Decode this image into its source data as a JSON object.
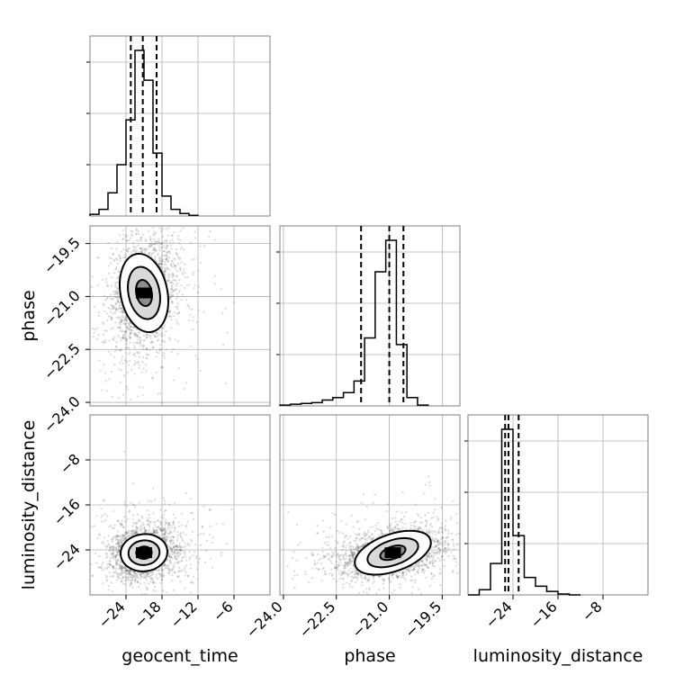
{
  "chart_data": {
    "type": "corner",
    "parameters": [
      "geocent_time",
      "phase",
      "luminosity_distance"
    ],
    "axes": {
      "geocent_time": {
        "label": "geocent_time",
        "range": [
          -30,
          0
        ],
        "ticks": [
          -24,
          -18,
          -12,
          -6
        ],
        "tick_labels": [
          "−24",
          "−18",
          "−12",
          "−6"
        ]
      },
      "phase": {
        "label": "phase",
        "range": [
          -24.1,
          -19.0
        ],
        "ticks": [
          -24.0,
          -22.5,
          -21.0,
          -19.5
        ],
        "tick_labels": [
          "−24.0",
          "−22.5",
          "−21.0",
          "−19.5"
        ]
      },
      "luminosity_distance": {
        "label": "luminosity_distance",
        "range": [
          -32,
          0
        ],
        "ticks": [
          -24,
          -16,
          -8
        ],
        "tick_labels": [
          "−24",
          "−16",
          "−8"
        ]
      }
    },
    "marginals": [
      {
        "parameter": "geocent_time",
        "bin_edges": [
          -30,
          -28.5,
          -27,
          -25.5,
          -24,
          -22.5,
          -21,
          -19.5,
          -18,
          -16.5,
          -15,
          -13.5,
          -12
        ],
        "counts": [
          0.01,
          0.04,
          0.14,
          0.31,
          0.58,
          1.0,
          0.82,
          0.38,
          0.12,
          0.04,
          0.015,
          0.004
        ],
        "quantiles": [
          -23.2,
          -21.2,
          -18.9
        ]
      },
      {
        "parameter": "phase",
        "bin_edges": [
          -24.1,
          -23.8,
          -23.5,
          -23.2,
          -22.9,
          -22.6,
          -22.3,
          -22.0,
          -21.7,
          -21.4,
          -21.1,
          -20.8,
          -20.5,
          -20.2,
          -19.9
        ],
        "counts": [
          0.005,
          0.01,
          0.015,
          0.02,
          0.035,
          0.05,
          0.08,
          0.15,
          0.41,
          0.81,
          1.0,
          0.37,
          0.05,
          0.005
        ],
        "quantiles": [
          -21.8,
          -21.0,
          -20.6
        ]
      },
      {
        "parameter": "luminosity_distance",
        "bin_edges": [
          -32,
          -30,
          -28,
          -26,
          -24,
          -22,
          -20,
          -18,
          -16,
          -14,
          -12
        ],
        "counts": [
          0.0,
          0.03,
          0.18,
          0.95,
          0.34,
          0.1,
          0.05,
          0.02,
          0.005,
          0.0
        ],
        "quantiles": [
          -25.4,
          -24.8,
          -23.0
        ]
      }
    ],
    "joint": [
      {
        "x": "geocent_time",
        "y": "phase",
        "center": [
          -21.0,
          -20.9
        ],
        "sigma": [
          2.6,
          0.75
        ],
        "rho": 0.2
      },
      {
        "x": "geocent_time",
        "y": "luminosity_distance",
        "center": [
          -21.0,
          -24.5
        ],
        "sigma": [
          2.6,
          2.2
        ],
        "rho": 0.1
      },
      {
        "x": "phase",
        "y": "luminosity_distance",
        "center": [
          -20.9,
          -24.5
        ],
        "sigma": [
          0.75,
          2.2
        ],
        "rho": 0.35
      }
    ],
    "grid": true
  }
}
